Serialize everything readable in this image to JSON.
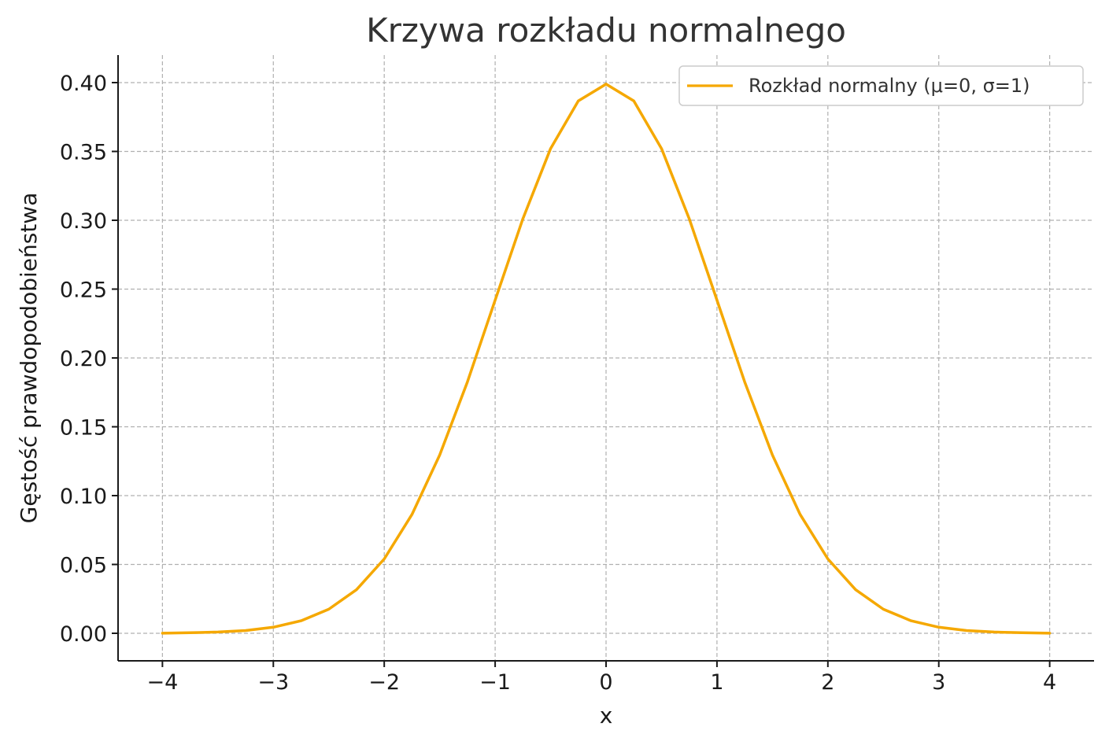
{
  "chart_data": {
    "type": "line",
    "title": "Krzywa rozkładu normalnego",
    "xlabel": "x",
    "ylabel": "Gęstość prawdopodobieństwa",
    "xlim": [
      -4.4,
      4.4
    ],
    "ylim": [
      -0.02,
      0.42
    ],
    "x_ticks": [
      -4,
      -3,
      -2,
      -1,
      0,
      1,
      2,
      3,
      4
    ],
    "x_tick_labels": [
      "−4",
      "−3",
      "−2",
      "−1",
      "0",
      "1",
      "2",
      "3",
      "4"
    ],
    "y_ticks": [
      0.0,
      0.05,
      0.1,
      0.15,
      0.2,
      0.25,
      0.3,
      0.35,
      0.4
    ],
    "y_tick_labels": [
      "0.00",
      "0.05",
      "0.10",
      "0.15",
      "0.20",
      "0.25",
      "0.30",
      "0.35",
      "0.40"
    ],
    "grid": true,
    "legend_position": "top-right",
    "series": [
      {
        "name": "Rozkład normalny (μ=0, σ=1)",
        "color": "#f5a800",
        "x": [
          -4.0,
          -3.75,
          -3.5,
          -3.25,
          -3.0,
          -2.75,
          -2.5,
          -2.25,
          -2.0,
          -1.75,
          -1.5,
          -1.25,
          -1.0,
          -0.75,
          -0.5,
          -0.25,
          0.0,
          0.25,
          0.5,
          0.75,
          1.0,
          1.25,
          1.5,
          1.75,
          2.0,
          2.25,
          2.5,
          2.75,
          3.0,
          3.25,
          3.5,
          3.75,
          4.0
        ],
        "y": [
          0.0001,
          0.0004,
          0.0009,
          0.002,
          0.0044,
          0.0091,
          0.0175,
          0.0317,
          0.054,
          0.0863,
          0.1295,
          0.1826,
          0.242,
          0.3011,
          0.3521,
          0.3867,
          0.3989,
          0.3867,
          0.3521,
          0.3011,
          0.242,
          0.1826,
          0.1295,
          0.0863,
          0.054,
          0.0317,
          0.0175,
          0.0091,
          0.0044,
          0.002,
          0.0009,
          0.0004,
          0.0001
        ]
      }
    ]
  }
}
